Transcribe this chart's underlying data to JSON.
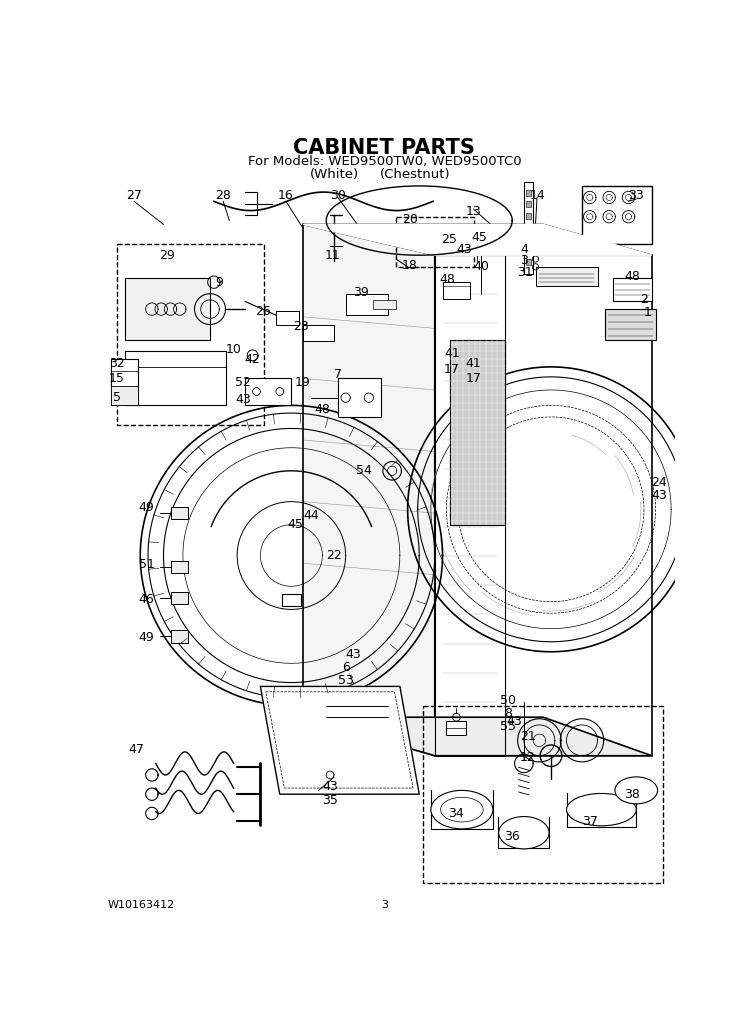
{
  "title": "CABINET PARTS",
  "subtitle_line1": "For Models: WED9500TW0, WED9500TC0",
  "subtitle_line2_left": "(White)",
  "subtitle_line2_right": "(Chestnut)",
  "footer_left": "W10163412",
  "footer_center": "3",
  "bg": "#ffffff",
  "lc": "#000000",
  "title_fs": 15,
  "sub_fs": 9.5,
  "footer_fs": 8,
  "label_fs": 9
}
